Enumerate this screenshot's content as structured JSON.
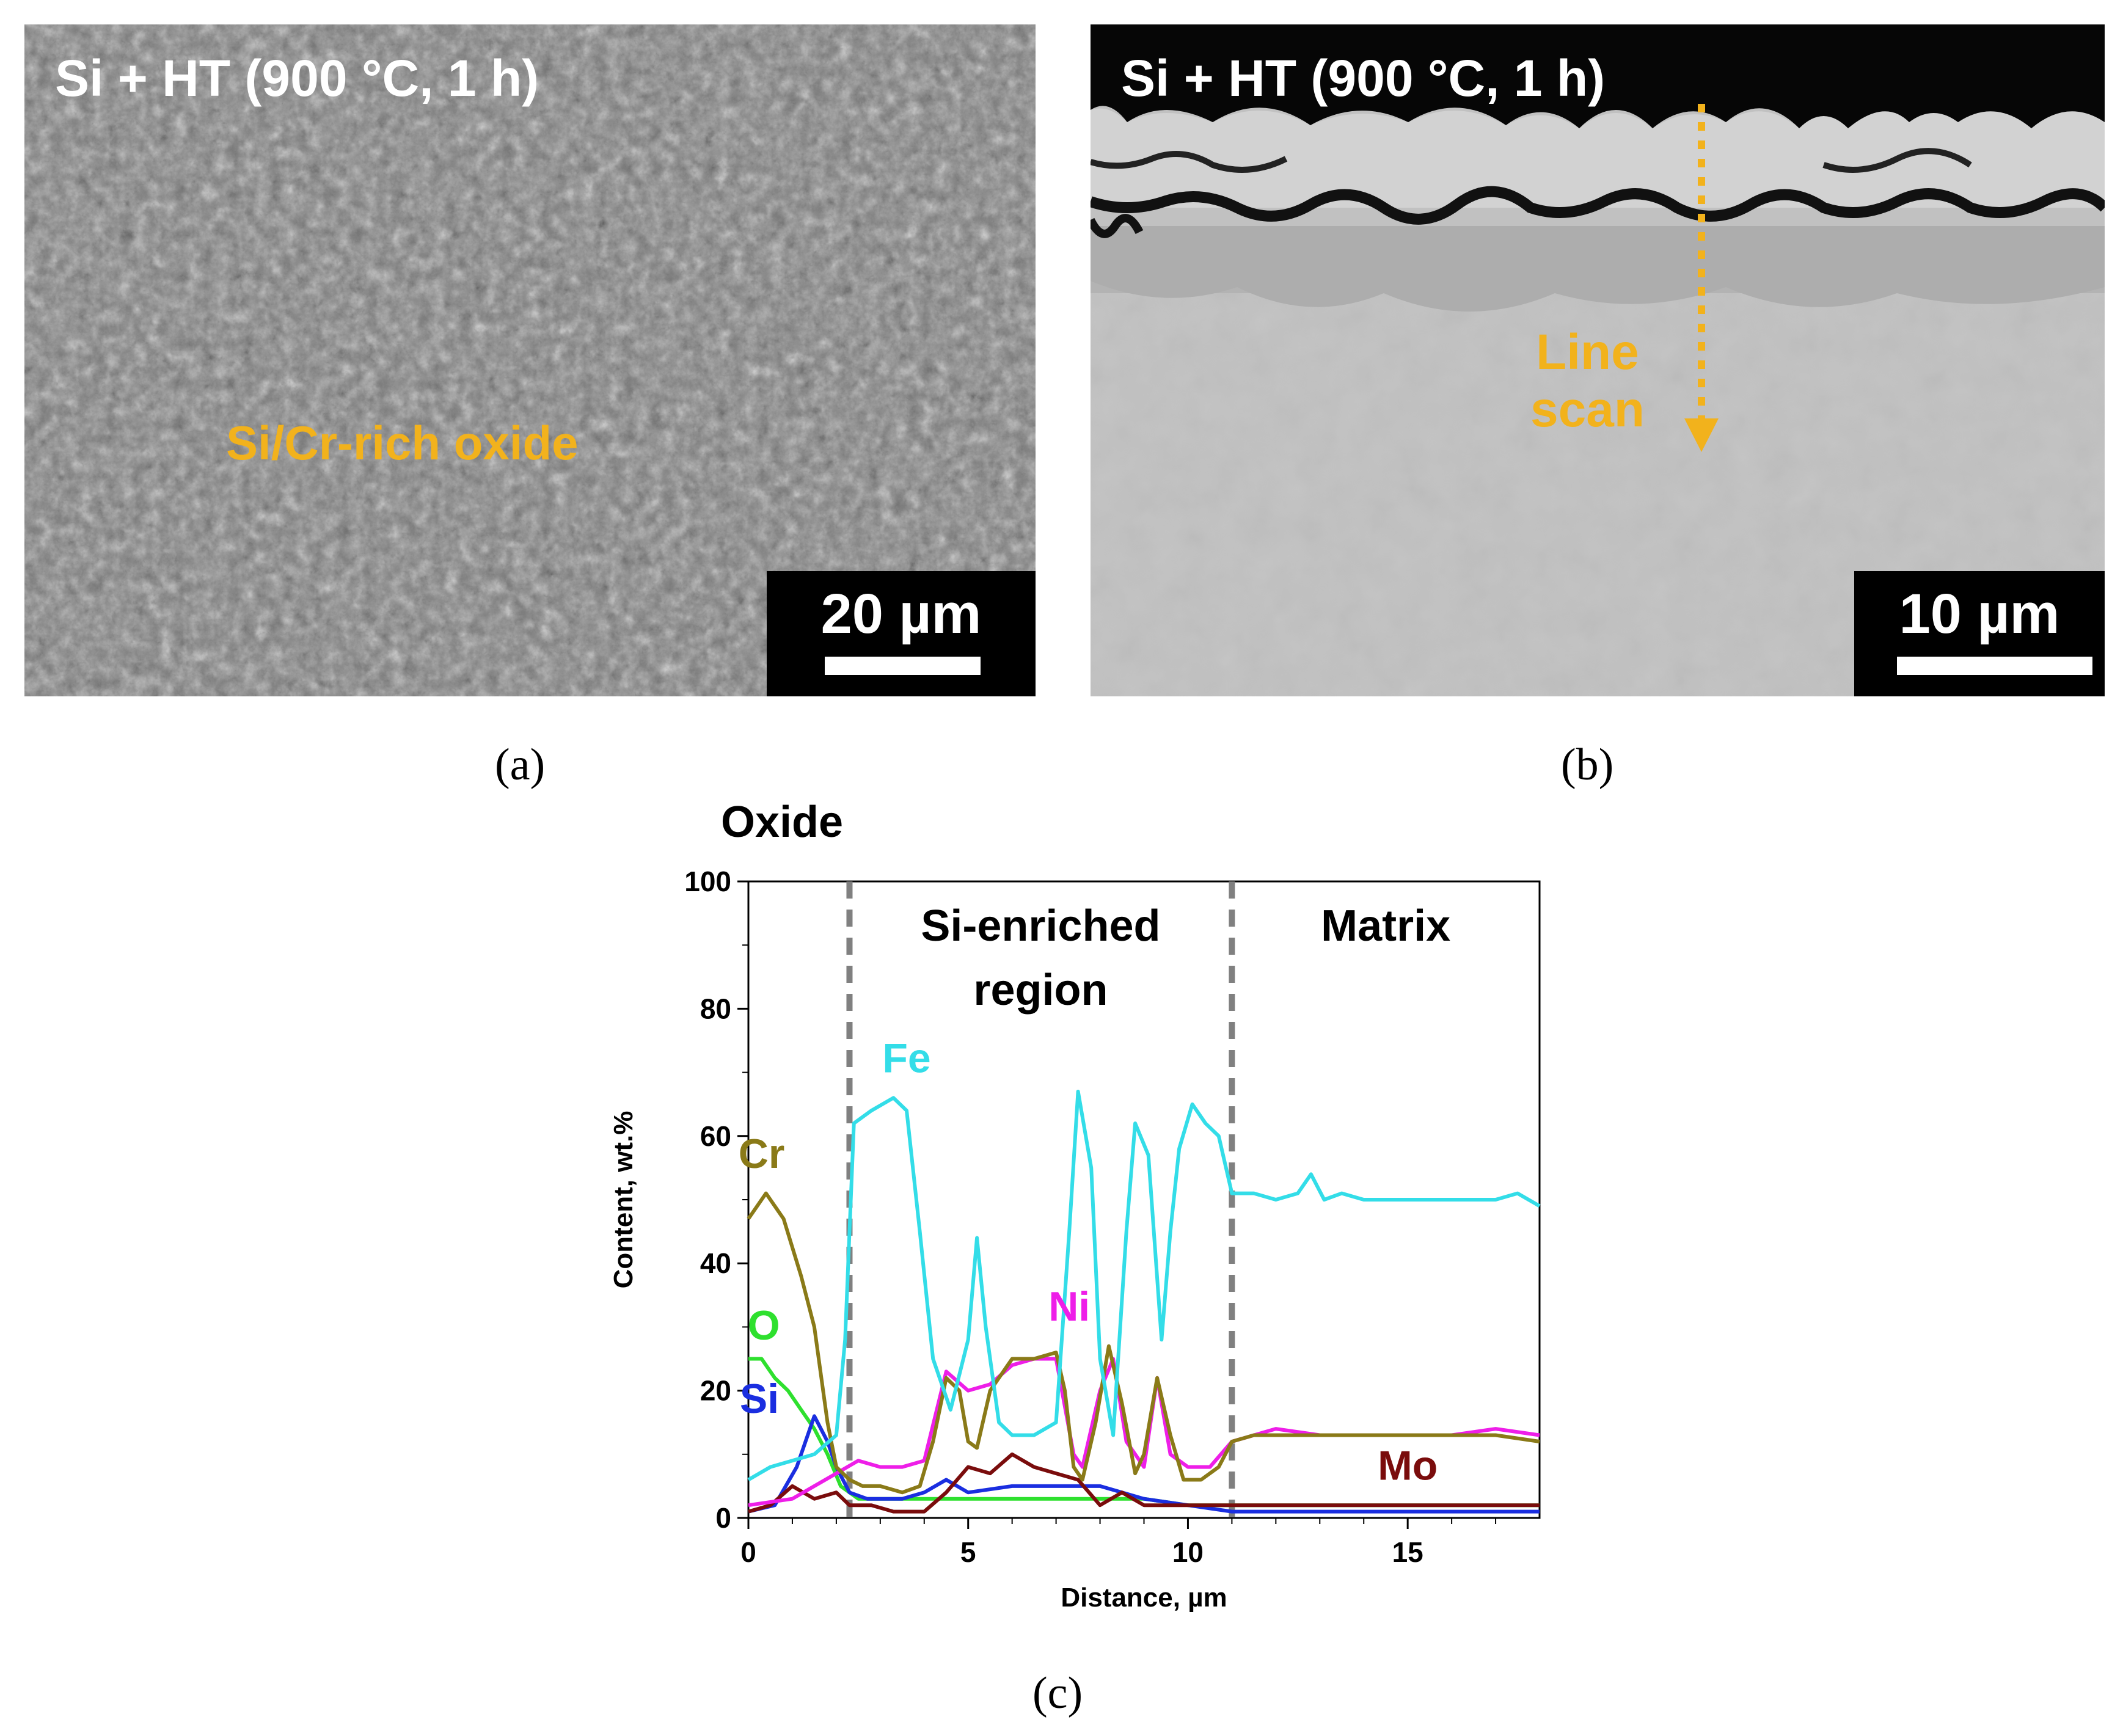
{
  "panel_a": {
    "title": "Si + HT (900 °C, 1 h)",
    "annotation": "Si/Cr-rich oxide",
    "scale_bar": "20 µm",
    "caption": "(a)"
  },
  "panel_b": {
    "title": "Si + HT (900 °C, 1 h)",
    "annotation_line1": "Line",
    "annotation_line2": "scan",
    "scale_bar": "10 µm",
    "caption": "(b)"
  },
  "panel_c": {
    "caption": "(c)",
    "region_labels": [
      "Oxide",
      "Si-enriched",
      "region",
      "Matrix"
    ]
  },
  "colors": {
    "annotation": "#f2b21c",
    "Fe": "#33dde8",
    "Cr": "#8a7a18",
    "Ni": "#ee1ee8",
    "O": "#2ee02e",
    "Si": "#1a2ee0",
    "Mo": "#7a0c0c"
  },
  "chart_data": {
    "type": "line",
    "xlabel": "Distance, µm",
    "ylabel": "Content, wt.%",
    "xlim": [
      0,
      18
    ],
    "ylim": [
      0,
      100
    ],
    "x_ticks": [
      0,
      5,
      10,
      15
    ],
    "y_ticks": [
      0,
      20,
      40,
      60,
      80,
      100
    ],
    "vlines": [
      2.3,
      11.0
    ],
    "series": [
      {
        "name": "Fe",
        "x": [
          0,
          0.5,
          1,
          1.5,
          2,
          2.2,
          2.4,
          2.8,
          3.3,
          3.6,
          3.9,
          4.2,
          4.6,
          5.0,
          5.2,
          5.4,
          5.7,
          6.0,
          6.5,
          7.0,
          7.3,
          7.5,
          7.8,
          8.0,
          8.3,
          8.6,
          8.8,
          9.1,
          9.4,
          9.6,
          9.8,
          10.1,
          10.4,
          10.7,
          11.0,
          11.5,
          12,
          12.5,
          12.8,
          13.1,
          13.5,
          14,
          15,
          16,
          17,
          17.5,
          18
        ],
        "y": [
          6,
          8,
          9,
          10,
          13,
          28,
          62,
          64,
          66,
          64,
          45,
          25,
          17,
          28,
          44,
          30,
          15,
          13,
          13,
          15,
          45,
          67,
          55,
          25,
          13,
          45,
          62,
          57,
          28,
          45,
          58,
          65,
          62,
          60,
          51,
          51,
          50,
          51,
          54,
          50,
          51,
          50,
          50,
          50,
          50,
          51,
          49
        ]
      },
      {
        "name": "Cr",
        "x": [
          0,
          0.2,
          0.4,
          0.8,
          1.2,
          1.5,
          1.8,
          2.0,
          2.3,
          2.6,
          3.0,
          3.5,
          3.9,
          4.2,
          4.5,
          4.8,
          5.0,
          5.2,
          5.5,
          6.0,
          6.5,
          7.0,
          7.2,
          7.4,
          7.6,
          7.9,
          8.2,
          8.5,
          8.8,
          9.0,
          9.3,
          9.6,
          9.9,
          10.3,
          10.7,
          11.0,
          11.5,
          12,
          13,
          14,
          15,
          16,
          17,
          18
        ],
        "y": [
          47,
          49,
          51,
          47,
          38,
          30,
          15,
          8,
          6,
          5,
          5,
          4,
          5,
          12,
          22,
          20,
          12,
          11,
          20,
          25,
          25,
          26,
          20,
          8,
          6,
          15,
          27,
          18,
          7,
          10,
          22,
          13,
          6,
          6,
          8,
          12,
          13,
          13,
          13,
          13,
          13,
          13,
          13,
          12
        ]
      },
      {
        "name": "Ni",
        "x": [
          0,
          1,
          1.5,
          2,
          2.5,
          3,
          3.5,
          4,
          4.5,
          5,
          5.5,
          6,
          6.5,
          7,
          7.4,
          7.6,
          8,
          8.3,
          8.6,
          9,
          9.3,
          9.6,
          10,
          10.5,
          11,
          12,
          13,
          14,
          15,
          16,
          17,
          18
        ],
        "y": [
          2,
          3,
          5,
          7,
          9,
          8,
          8,
          9,
          23,
          20,
          21,
          24,
          25,
          25,
          10,
          8,
          20,
          25,
          12,
          8,
          22,
          10,
          8,
          8,
          12,
          14,
          13,
          13,
          13,
          13,
          14,
          13
        ]
      },
      {
        "name": "O",
        "x": [
          0,
          0.3,
          0.6,
          0.9,
          1.2,
          1.5,
          1.8,
          2.1,
          2.5,
          3,
          4,
          5,
          6,
          7,
          8,
          9,
          10,
          11,
          12,
          14,
          16,
          18
        ],
        "y": [
          25,
          25,
          22,
          20,
          17,
          14,
          10,
          5,
          3,
          3,
          3,
          3,
          3,
          3,
          3,
          3,
          2,
          2,
          2,
          2,
          2,
          2
        ]
      },
      {
        "name": "Si",
        "x": [
          0,
          0.6,
          1.1,
          1.5,
          1.8,
          2.0,
          2.3,
          2.7,
          3,
          3.5,
          4,
          4.5,
          5,
          6,
          7,
          8,
          8.5,
          9,
          10,
          11,
          12,
          14,
          16,
          18
        ],
        "y": [
          1,
          2,
          8,
          16,
          12,
          8,
          4,
          3,
          3,
          3,
          4,
          6,
          4,
          5,
          5,
          5,
          4,
          3,
          2,
          1,
          1,
          1,
          1,
          1
        ]
      },
      {
        "name": "Mo",
        "x": [
          0,
          0.5,
          1,
          1.5,
          2,
          2.3,
          2.8,
          3.3,
          4,
          4.5,
          5,
          5.5,
          6,
          6.5,
          7,
          7.5,
          8,
          8.5,
          9,
          9.5,
          10,
          10.5,
          11,
          12,
          13,
          14,
          15,
          16,
          17,
          18
        ],
        "y": [
          1,
          2,
          5,
          3,
          4,
          2,
          2,
          1,
          1,
          4,
          8,
          7,
          10,
          8,
          7,
          6,
          2,
          4,
          2,
          2,
          2,
          2,
          2,
          2,
          2,
          2,
          2,
          2,
          2,
          2
        ]
      }
    ]
  }
}
